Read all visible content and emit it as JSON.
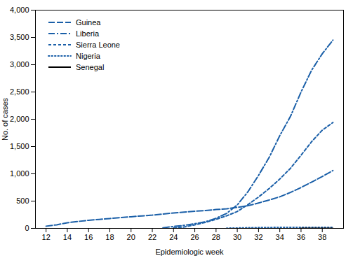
{
  "chart_data": {
    "type": "line",
    "xlabel": "Epidemiologic week",
    "ylabel": "No. of cases",
    "xlim": [
      11,
      40
    ],
    "ylim": [
      0,
      4000
    ],
    "xticks": [
      12,
      14,
      16,
      18,
      20,
      22,
      24,
      26,
      28,
      30,
      32,
      34,
      36,
      38
    ],
    "yticks": [
      0,
      500,
      {
        "value": 1000,
        "label": "1,000"
      },
      {
        "value": 1500,
        "label": "1,500"
      },
      {
        "value": 2000,
        "label": "2,000"
      },
      {
        "value": 2500,
        "label": "2,500"
      },
      {
        "value": 3000,
        "label": "3,000"
      },
      {
        "value": 3500,
        "label": "3,500"
      },
      {
        "value": 4000,
        "label": "4,000"
      }
    ],
    "grid": false,
    "legend": "upper left",
    "series": [
      {
        "name": "Guinea",
        "color": "#1a5fa8",
        "line_style": "long_dash",
        "x": [
          12,
          13,
          14,
          15,
          16,
          17,
          18,
          19,
          20,
          21,
          22,
          23,
          24,
          25,
          26,
          27,
          28,
          29,
          30,
          31,
          32,
          33,
          34,
          35,
          36,
          37,
          38,
          39
        ],
        "values": [
          40,
          65,
          103,
          127,
          148,
          163,
          181,
          197,
          213,
          228,
          243,
          263,
          282,
          298,
          313,
          328,
          345,
          358,
          385,
          415,
          465,
          519,
          579,
          658,
          749,
          849,
          950,
          1060
        ]
      },
      {
        "name": "Liberia",
        "color": "#1a5fa8",
        "line_style": "dash_dot",
        "x": [
          23,
          24,
          25,
          26,
          27,
          28,
          29,
          30,
          31,
          32,
          33,
          34,
          35,
          36,
          37,
          38,
          39
        ],
        "values": [
          10,
          35,
          55,
          85,
          120,
          185,
          275,
          430,
          670,
          972,
          1300,
          1700,
          2050,
          2500,
          2900,
          3200,
          3450
        ]
      },
      {
        "name": "Sierra Leone",
        "color": "#1a5fa8",
        "line_style": "dashed",
        "x": [
          24,
          25,
          26,
          27,
          28,
          29,
          30,
          31,
          32,
          33,
          34,
          35,
          36,
          37,
          38,
          39
        ],
        "values": [
          10,
          25,
          65,
          110,
          165,
          230,
          310,
          435,
          575,
          730,
          905,
          1100,
          1340,
          1590,
          1800,
          1940
        ]
      },
      {
        "name": "Nigeria",
        "color": "#1a5fa8",
        "line_style": "dotted",
        "x": [
          29,
          30,
          31,
          32,
          33,
          34,
          35,
          36,
          37,
          38,
          39
        ],
        "values": [
          4,
          8,
          12,
          15,
          17,
          19,
          20,
          20,
          20,
          20,
          20
        ]
      },
      {
        "name": "Senegal",
        "color": "#000000",
        "line_style": "solid",
        "x": [
          36,
          37,
          38,
          39
        ],
        "values": [
          1,
          1,
          1,
          1
        ]
      }
    ]
  }
}
